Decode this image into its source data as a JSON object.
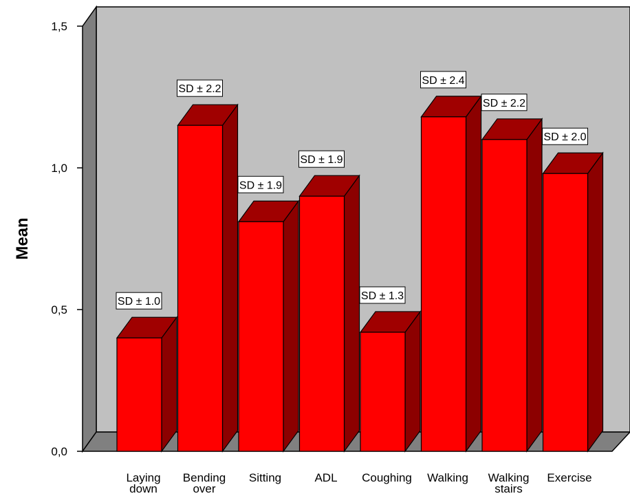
{
  "chart_data": {
    "type": "bar",
    "title": "",
    "xlabel": "",
    "ylabel": "Mean",
    "ylim": [
      0,
      1.5
    ],
    "yticks": [
      "0,0",
      "0,5",
      "1,0",
      "1,5"
    ],
    "categories": [
      "Laying down",
      "Bending over",
      "Sitting",
      "ADL",
      "Coughing",
      "Walking",
      "Walking stairs",
      "Exercise"
    ],
    "values": [
      0.4,
      1.15,
      0.81,
      0.9,
      0.42,
      1.18,
      1.1,
      0.98
    ],
    "sd_labels": [
      "SD ± 1.0",
      "SD ± 2.2",
      "SD ± 1.9",
      "SD ± 1.9",
      "SD ± 1.3",
      "SD ± 2.4",
      "SD ± 2.2",
      "SD ± 2.0"
    ],
    "grid": false,
    "legend": "none",
    "style": "3d",
    "colors": {
      "bar_front": "#ff0000",
      "bar_top": "#a00000",
      "bar_side": "#8c0000",
      "back_wall": "#c0c0c0",
      "side_wall": "#7f7f7f",
      "floor": "#808080"
    }
  }
}
